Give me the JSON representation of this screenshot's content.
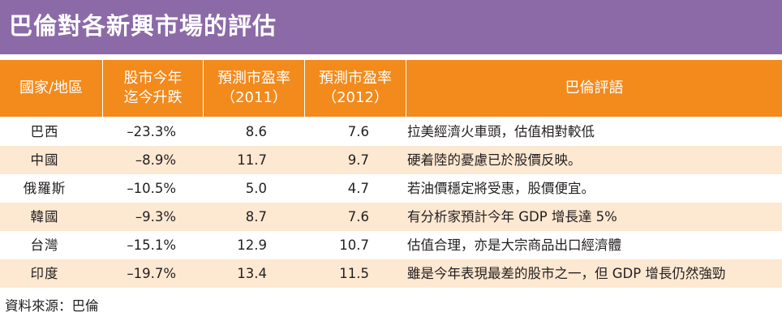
{
  "title": "巴倫對各新興市場的評估",
  "headers": {
    "country": "國家/地區",
    "change": [
      "股市今年",
      "迄今升跌"
    ],
    "pe2011": [
      "預測市盈率",
      "（2011）"
    ],
    "pe2012": [
      "預測市盈率",
      "（2012）"
    ],
    "comment": "巴倫評語"
  },
  "rows": [
    {
      "country": "巴西",
      "change": "–23.3%",
      "pe2011": "8.6",
      "pe2012": "7.6",
      "comment": "拉美經濟火車頭，估值相對較低"
    },
    {
      "country": "中國",
      "change": "–8.9%",
      "pe2011": "11.7",
      "pe2012": "9.7",
      "comment": "硬着陸的憂慮已於股價反映。"
    },
    {
      "country": "俄羅斯",
      "change": "–10.5%",
      "pe2011": "5.0",
      "pe2012": "4.7",
      "comment": "若油價穩定將受惠，股價便宜。"
    },
    {
      "country": "韓國",
      "change": "–9.3%",
      "pe2011": "8.7",
      "pe2012": "7.6",
      "comment": "有分析家預計今年 GDP 增長達 5%"
    },
    {
      "country": "台灣",
      "change": "–15.1%",
      "pe2011": "12.9",
      "pe2012": "10.7",
      "comment": "估值合理，亦是大宗商品出口經濟體"
    },
    {
      "country": "印度",
      "change": "–19.7%",
      "pe2011": "13.4",
      "pe2012": "11.5",
      "comment": "雖是今年表現最差的股市之一，但 GDP 增長仍然強勁"
    }
  ],
  "source": "資料來源：巴倫",
  "colors": {
    "title_bg": "#8c6aa8",
    "header_bg": "#f28a1c",
    "row_shade": "#fde8d2"
  }
}
